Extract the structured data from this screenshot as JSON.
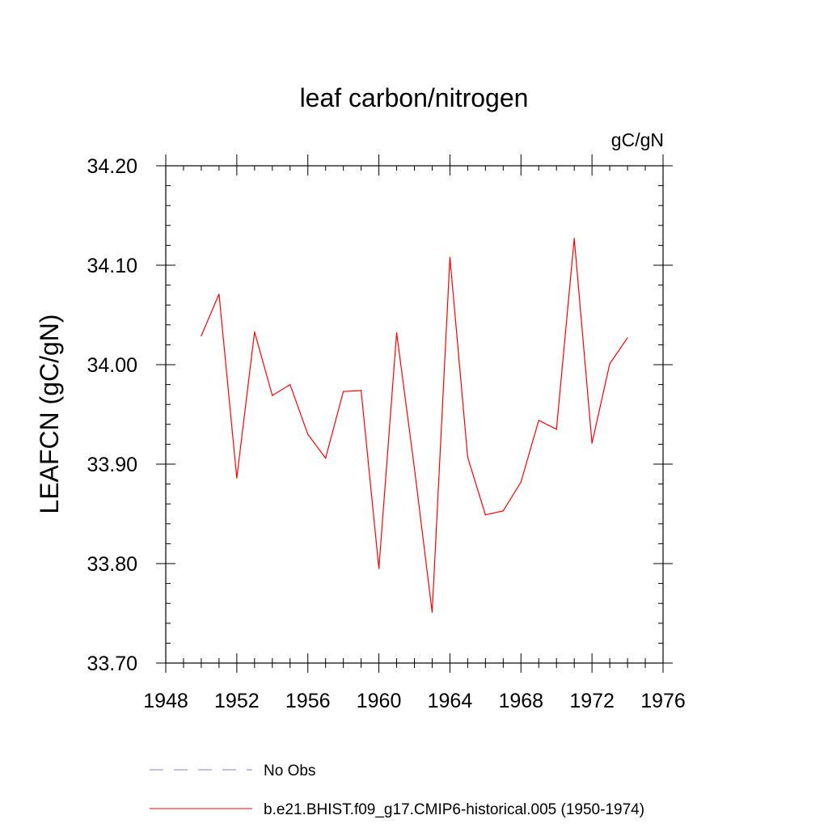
{
  "chart_data": {
    "type": "line",
    "title": "leaf carbon/nitrogen",
    "units": "gC/gN",
    "ylabel": "LEAFCN  (gC/gN)",
    "xlabel": "",
    "xlim": [
      1948,
      1976
    ],
    "ylim": [
      33.7,
      34.2
    ],
    "x_ticks": [
      "1948",
      "1952",
      "1956",
      "1960",
      "1964",
      "1968",
      "1972",
      "1976"
    ],
    "y_ticks": [
      "33.70",
      "33.80",
      "33.90",
      "34.00",
      "34.10",
      "34.20"
    ],
    "series": [
      {
        "name": "b.e21.BHIST.f09_g17.CMIP6-historical.005 (1950-1974)",
        "color": "#ff0000",
        "style": "solid",
        "x": [
          1950,
          1951,
          1952,
          1953,
          1954,
          1955,
          1956,
          1957,
          1958,
          1959,
          1960,
          1961,
          1962,
          1963,
          1964,
          1965,
          1966,
          1967,
          1968,
          1969,
          1970,
          1971,
          1972,
          1973,
          1974
        ],
        "values": [
          34.029,
          34.071,
          33.886,
          34.033,
          33.969,
          33.98,
          33.93,
          33.906,
          33.973,
          33.974,
          33.795,
          34.032,
          33.896,
          33.751,
          34.108,
          33.907,
          33.849,
          33.853,
          33.882,
          33.944,
          33.935,
          34.127,
          33.921,
          34.001,
          34.027
        ]
      }
    ],
    "legend": [
      {
        "label": "No Obs",
        "color": "#8080c0",
        "style": "dashed"
      },
      {
        "label": "b.e21.BHIST.f09_g17.CMIP6-historical.005 (1950-1974)",
        "color": "#ff0000",
        "style": "solid"
      }
    ]
  }
}
